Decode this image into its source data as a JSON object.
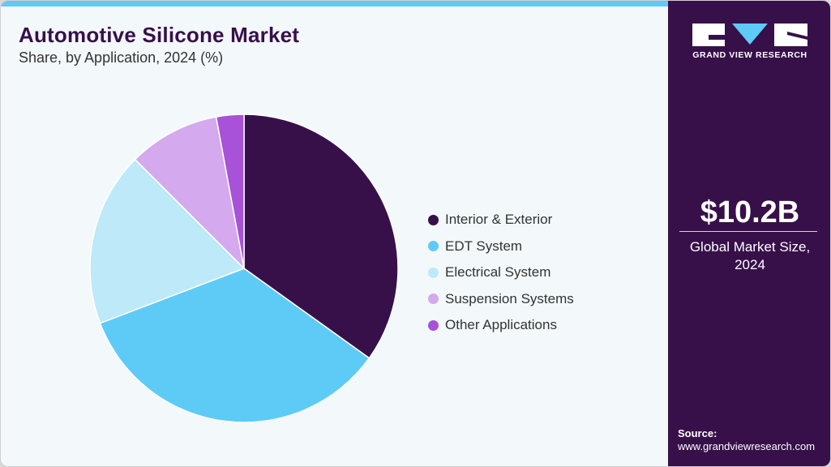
{
  "header": {
    "title": "Automotive Silicone Market",
    "subtitle": "Share, by Application, 2024 (%)"
  },
  "brand": {
    "name": "GRAND VIEW RESEARCH",
    "colors": {
      "panel": "#37104a",
      "accent": "#5ecbf6"
    }
  },
  "stat": {
    "value": "$10.2B",
    "caption_line1": "Global Market Size,",
    "caption_line2": "2024"
  },
  "source": {
    "label": "Source:",
    "url": "www.grandviewresearch.com"
  },
  "legend": [
    {
      "label": "Interior & Exterior",
      "color": "#37104a"
    },
    {
      "label": "EDT System",
      "color": "#5ecbf6"
    },
    {
      "label": "Electrical System",
      "color": "#bee9f9"
    },
    {
      "label": "Suspension Systems",
      "color": "#d4a9ed"
    },
    {
      "label": "Other Applications",
      "color": "#a752d9"
    }
  ],
  "chart_data": {
    "type": "pie",
    "title": "Automotive Silicone Market",
    "subtitle": "Share, by Application, 2024 (%)",
    "categories": [
      "Interior & Exterior",
      "EDT System",
      "Electrical System",
      "Suspension Systems",
      "Other Applications"
    ],
    "values": [
      34.9,
      34.3,
      18.3,
      9.6,
      2.9
    ],
    "colors": [
      "#37104a",
      "#5ecbf6",
      "#bee9f9",
      "#d4a9ed",
      "#a752d9"
    ],
    "start_angle_deg": 0,
    "direction": "clockwise",
    "legend_position": "right",
    "data_labels": false
  }
}
